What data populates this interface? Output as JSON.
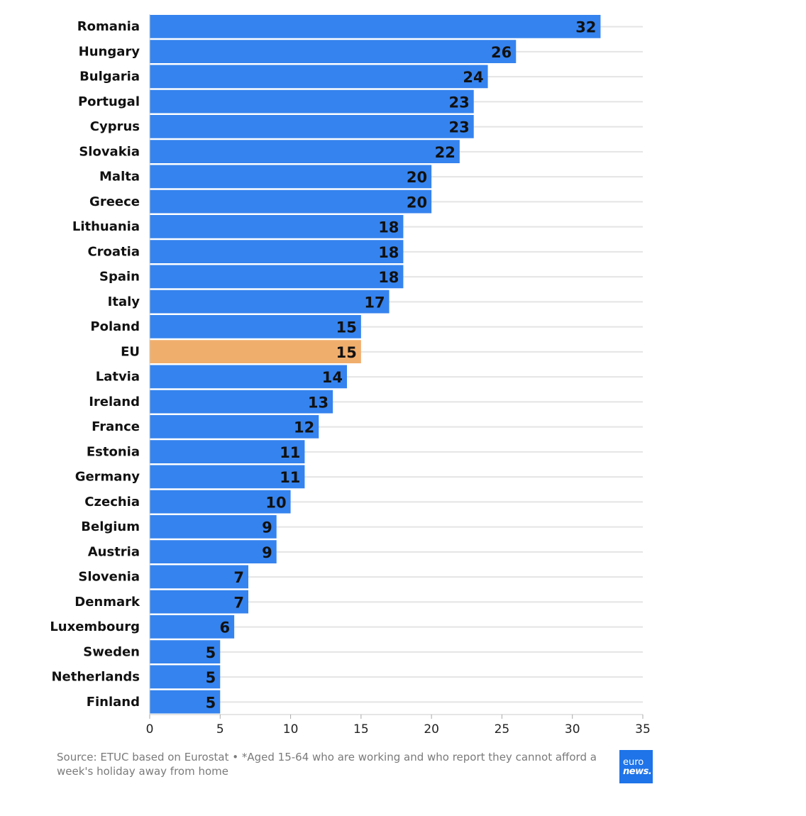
{
  "chart_data": {
    "type": "bar",
    "orientation": "horizontal",
    "categories": [
      "Romania",
      "Hungary",
      "Bulgaria",
      "Portugal",
      "Cyprus",
      "Slovakia",
      "Malta",
      "Greece",
      "Lithuania",
      "Croatia",
      "Spain",
      "Italy",
      "Poland",
      "EU",
      "Latvia",
      "Ireland",
      "France",
      "Estonia",
      "Germany",
      "Czechia",
      "Belgium",
      "Austria",
      "Slovenia",
      "Denmark",
      "Luxembourg",
      "Sweden",
      "Netherlands",
      "Finland"
    ],
    "values": [
      32,
      26,
      24,
      23,
      23,
      22,
      20,
      20,
      18,
      18,
      18,
      17,
      15,
      15,
      14,
      13,
      12,
      11,
      11,
      10,
      9,
      9,
      7,
      7,
      6,
      5,
      5,
      5
    ],
    "highlight": "EU",
    "xlim": [
      0,
      35
    ],
    "xticks": [
      "0",
      "5",
      "10",
      "15",
      "20",
      "25",
      "30",
      "35"
    ],
    "grid": true,
    "colors": {
      "bar": "#3583ee",
      "highlight": "#f0ae6d",
      "grid": "#e4e4e4",
      "bar_stroke": "#1e5fc4"
    },
    "title": "",
    "xlabel": "",
    "ylabel": ""
  },
  "footer": {
    "source": "Source: ETUC based on Eurostat • *Aged 15-64 who are working and who report they cannot afford a week's holiday away from home"
  },
  "logo": {
    "line1": "euro",
    "line2": "news."
  }
}
